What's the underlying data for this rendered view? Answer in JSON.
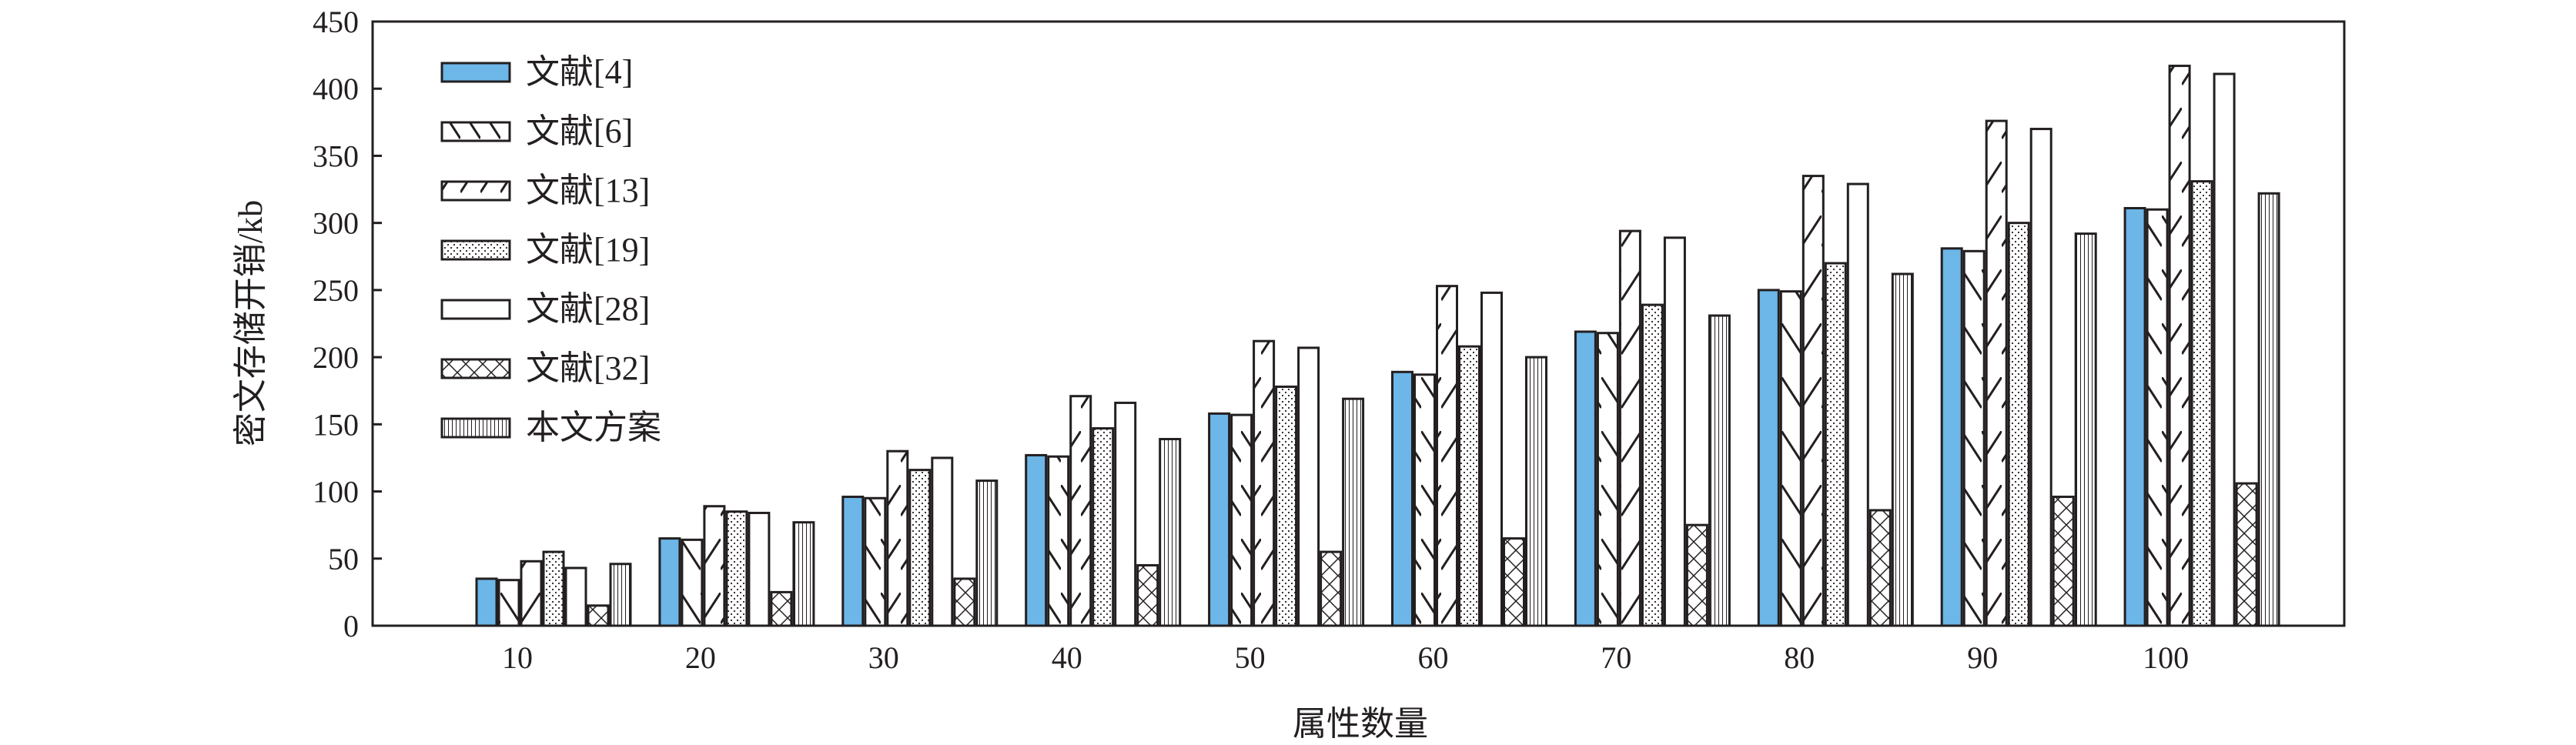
{
  "chart_data": {
    "type": "bar",
    "title": "",
    "xlabel": "属性数量",
    "ylabel": "密文存储开销/kb",
    "ylim": [
      0,
      450
    ],
    "yticks": [
      0,
      50,
      100,
      150,
      200,
      250,
      300,
      350,
      400,
      450
    ],
    "categories": [
      "10",
      "20",
      "30",
      "40",
      "50",
      "60",
      "70",
      "80",
      "90",
      "100"
    ],
    "legend_position": "top-left",
    "grid": false,
    "series": [
      {
        "name": "文献[4]",
        "pattern": "solid",
        "color": "#6cb6e8",
        "values": [
          35,
          65,
          96,
          127,
          158,
          189,
          219,
          250,
          281,
          311
        ]
      },
      {
        "name": "文献[6]",
        "pattern": "backslash",
        "values": [
          34,
          64,
          95,
          126,
          157,
          187,
          218,
          249,
          279,
          310
        ]
      },
      {
        "name": "文献[13]",
        "pattern": "slash",
        "values": [
          48,
          89,
          130,
          171,
          212,
          253,
          294,
          335,
          376,
          417
        ]
      },
      {
        "name": "文献[19]",
        "pattern": "dots",
        "values": [
          55,
          85,
          116,
          147,
          178,
          208,
          239,
          270,
          300,
          331
        ]
      },
      {
        "name": "文献[28]",
        "pattern": "empty",
        "values": [
          43,
          84,
          125,
          166,
          207,
          248,
          289,
          329,
          370,
          411
        ]
      },
      {
        "name": "文献[32]",
        "pattern": "crosshatch",
        "values": [
          15,
          25,
          35,
          45,
          55,
          65,
          75,
          86,
          96,
          106
        ]
      },
      {
        "name": "本文方案",
        "pattern": "vertical",
        "values": [
          46,
          77,
          108,
          139,
          169,
          200,
          231,
          262,
          292,
          322
        ]
      }
    ]
  }
}
